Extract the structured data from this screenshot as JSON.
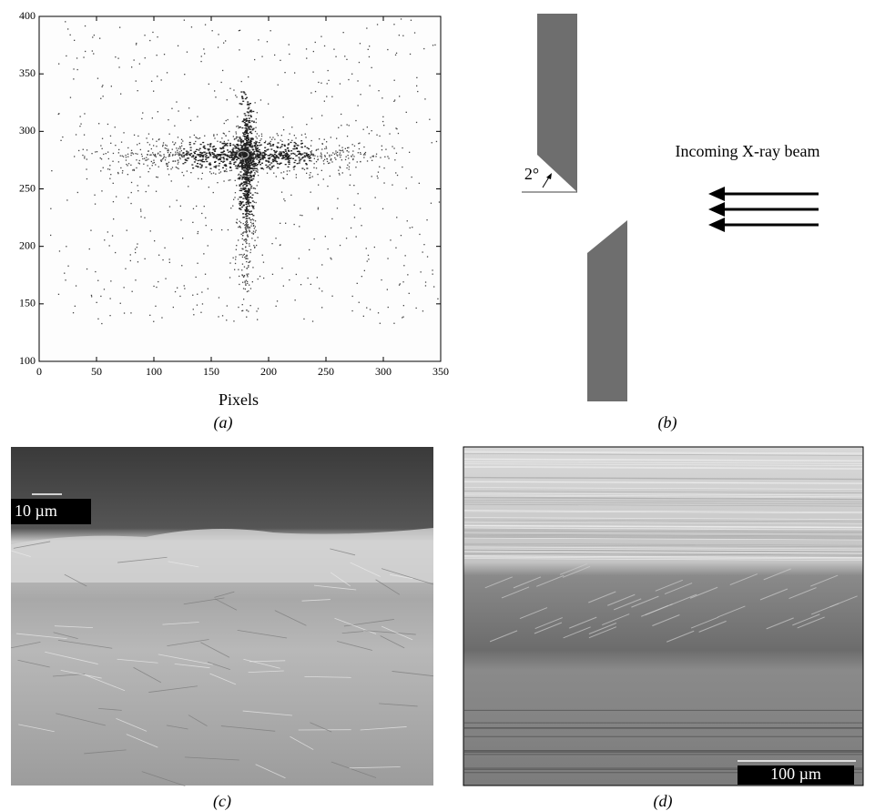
{
  "chart_data": {
    "type": "image",
    "xlabel": "Pixels",
    "xlim": [
      0,
      350
    ],
    "xticks": [
      0,
      50,
      100,
      150,
      200,
      250,
      300,
      350
    ],
    "ylim": [
      100,
      400
    ],
    "yticks": [
      100,
      150,
      200,
      250,
      300,
      350,
      400
    ],
    "caption": "(a)"
  },
  "panel_b": {
    "angle_label": "2°",
    "beam_label": "Incoming X-ray beam",
    "caption": "(b)"
  },
  "panel_c": {
    "scale_label": "10 µm",
    "caption": "(c)"
  },
  "panel_d": {
    "scale_label": "100 µm",
    "caption": "(d)"
  }
}
